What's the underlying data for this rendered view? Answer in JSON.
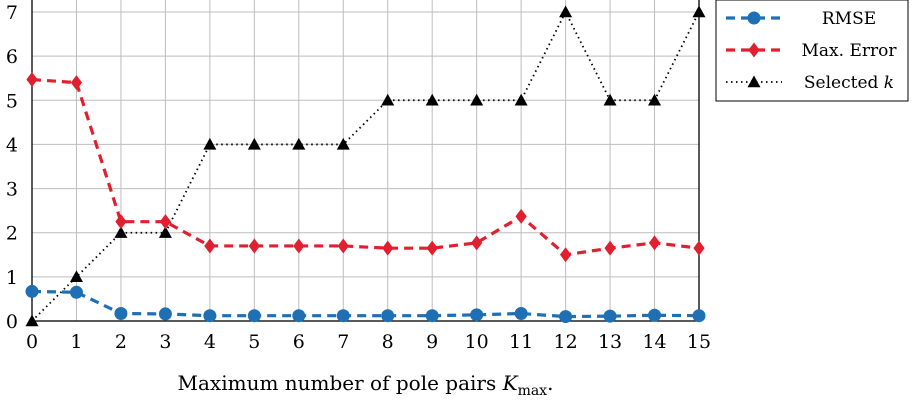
{
  "chart_data": {
    "type": "line",
    "xlabel_main": "Maximum number of pole pairs ",
    "xlabel_var": "K",
    "xlabel_sub": "max",
    "xlabel_end": ".",
    "xlim": [
      0,
      15
    ],
    "ylim": [
      0,
      7
    ],
    "x": [
      0,
      1,
      2,
      3,
      4,
      5,
      6,
      7,
      8,
      9,
      10,
      11,
      12,
      13,
      14,
      15
    ],
    "x_tick_labels": [
      "0",
      "1",
      "2",
      "3",
      "4",
      "5",
      "6",
      "7",
      "8",
      "9",
      "10",
      "11",
      "12",
      "13",
      "14",
      "15"
    ],
    "y_tick_labels": [
      "0",
      "1",
      "2",
      "3",
      "4",
      "5",
      "6",
      "7"
    ],
    "y_ticks": [
      0,
      1,
      2,
      3,
      4,
      5,
      6,
      7
    ],
    "grid": true,
    "legend_position": "top-right",
    "series": [
      {
        "name": "RMSE",
        "color": "#1f6fb4",
        "marker": "circle",
        "dash": "dashed",
        "values": [
          0.67,
          0.65,
          0.17,
          0.16,
          0.12,
          0.12,
          0.12,
          0.12,
          0.12,
          0.12,
          0.14,
          0.17,
          0.1,
          0.11,
          0.13,
          0.12
        ]
      },
      {
        "name": "Max. Error",
        "color": "#e0202f",
        "marker": "diamond",
        "dash": "dashed",
        "values": [
          5.47,
          5.4,
          2.25,
          2.25,
          1.7,
          1.7,
          1.7,
          1.7,
          1.65,
          1.65,
          1.77,
          2.37,
          1.5,
          1.65,
          1.77,
          1.65
        ]
      },
      {
        "name": "Selected ",
        "name_var": "k",
        "color": "#000000",
        "marker": "triangle",
        "dash": "dotted",
        "values": [
          0,
          1,
          2,
          2,
          4,
          4,
          4,
          4,
          5,
          5,
          5,
          5,
          7,
          5,
          5,
          7
        ]
      }
    ]
  }
}
